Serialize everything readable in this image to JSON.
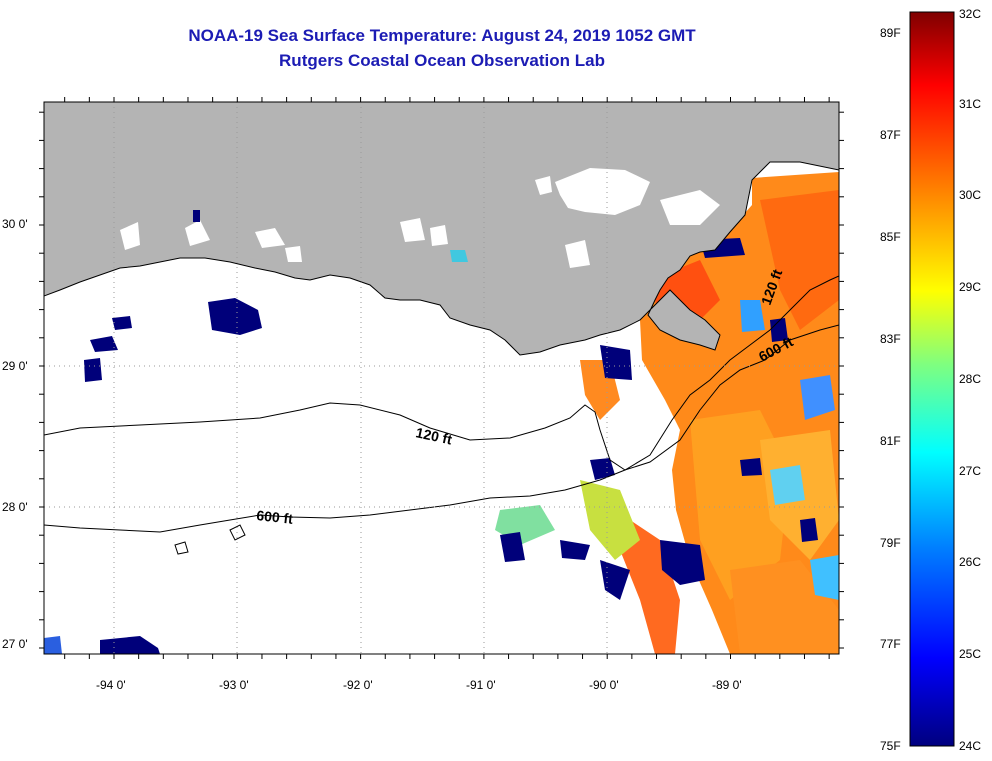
{
  "title": "NOAA-19 Sea Surface Temperature:  August 24, 2019 1052 GMT",
  "subtitle": "Rutgers Coastal Ocean Observation Lab",
  "map": {
    "lat_labels": [
      "30 0'",
      "29 0'",
      "28 0'",
      "27 0'"
    ],
    "lon_labels": [
      "-94 0'",
      "-93 0'",
      "-92 0'",
      "-91 0'",
      "-90 0'",
      "-89 0'"
    ],
    "contour_labels": {
      "c120_west": "120 ft",
      "c600_west": "600 ft",
      "c600_east": "600 ft",
      "c120_east": "120 ft"
    },
    "colors": {
      "land": "#b4b4b4",
      "ocean_nodata": "#ffffff",
      "cloud": "#00007a"
    }
  },
  "colorbar": {
    "fahrenheit_labels": [
      "89F",
      "87F",
      "85F",
      "83F",
      "81F",
      "79F",
      "77F",
      "75F"
    ],
    "celsius_labels": [
      "32C",
      "31C",
      "30C",
      "29C",
      "28C",
      "27C",
      "26C",
      "25C",
      "24C"
    ],
    "colors": [
      "#00007f",
      "#0000ff",
      "#007fff",
      "#00ffff",
      "#7fff7f",
      "#ffff00",
      "#ff7f00",
      "#ff0000",
      "#7f0000"
    ]
  }
}
